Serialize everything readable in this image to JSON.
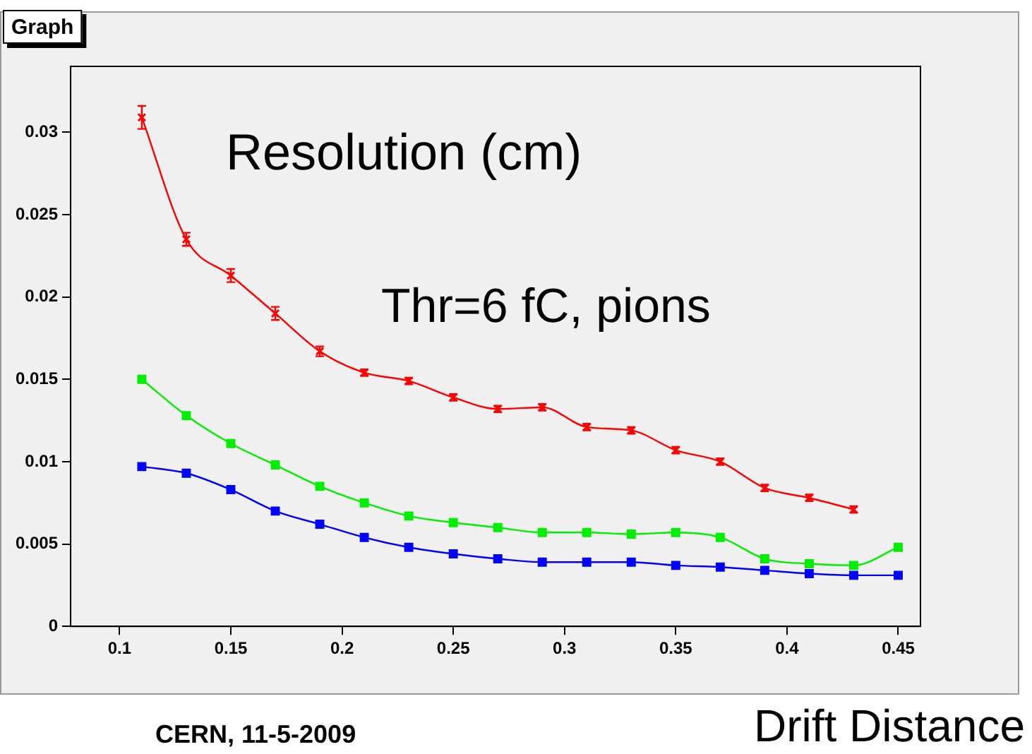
{
  "chart_data": {
    "type": "line",
    "title": "Graph",
    "xlabel": "Drift Distance",
    "annotations": [
      "Resolution (cm)",
      "Thr=6 fC, pions",
      "CERN, 11-5-2009"
    ],
    "x": [
      0.11,
      0.13,
      0.15,
      0.17,
      0.19,
      0.21,
      0.23,
      0.25,
      0.27,
      0.29,
      0.31,
      0.33,
      0.35,
      0.37,
      0.39,
      0.41,
      0.43,
      0.45
    ],
    "series": [
      {
        "color": "#ff0000",
        "marker": "cross",
        "values": [
          0.0309,
          0.0235,
          0.0213,
          0.019,
          0.0167,
          0.0154,
          0.0149,
          0.0139,
          0.0132,
          0.0133,
          0.0121,
          0.0119,
          0.0107,
          0.01,
          0.0084,
          0.0078,
          0.0071,
          null
        ],
        "errors": [
          0.0007,
          0.0004,
          0.0004,
          0.0004,
          0.0003,
          0.0002,
          0.0002,
          0.0002,
          0.0002,
          0.0002,
          0.0002,
          0.0002,
          0.0002,
          0.0002,
          0.0002,
          0.0002,
          0.0002,
          null
        ]
      },
      {
        "color": "#00ee00",
        "marker": "square",
        "values": [
          0.015,
          0.0128,
          0.0111,
          0.0098,
          0.0085,
          0.0075,
          0.0067,
          0.0063,
          0.006,
          0.0057,
          0.0057,
          0.0056,
          0.0057,
          0.0054,
          0.0041,
          0.0038,
          0.0037,
          0.0048
        ]
      },
      {
        "color": "#0000ff",
        "marker": "square",
        "values": [
          0.0097,
          0.0093,
          0.0083,
          0.007,
          0.0062,
          0.0054,
          0.0048,
          0.0044,
          0.0041,
          0.0039,
          0.0039,
          0.0039,
          0.0037,
          0.0036,
          0.0034,
          0.0032,
          0.0031,
          0.0031
        ]
      }
    ],
    "xlim": [
      0.078,
      0.46
    ],
    "xticks": [
      0.1,
      0.15,
      0.2,
      0.25,
      0.3,
      0.35,
      0.4,
      0.45
    ],
    "ylim": [
      0,
      0.034
    ],
    "yticks": [
      0,
      0.005,
      0.01,
      0.015,
      0.02,
      0.025,
      0.03
    ],
    "grid": false,
    "legend": false
  }
}
